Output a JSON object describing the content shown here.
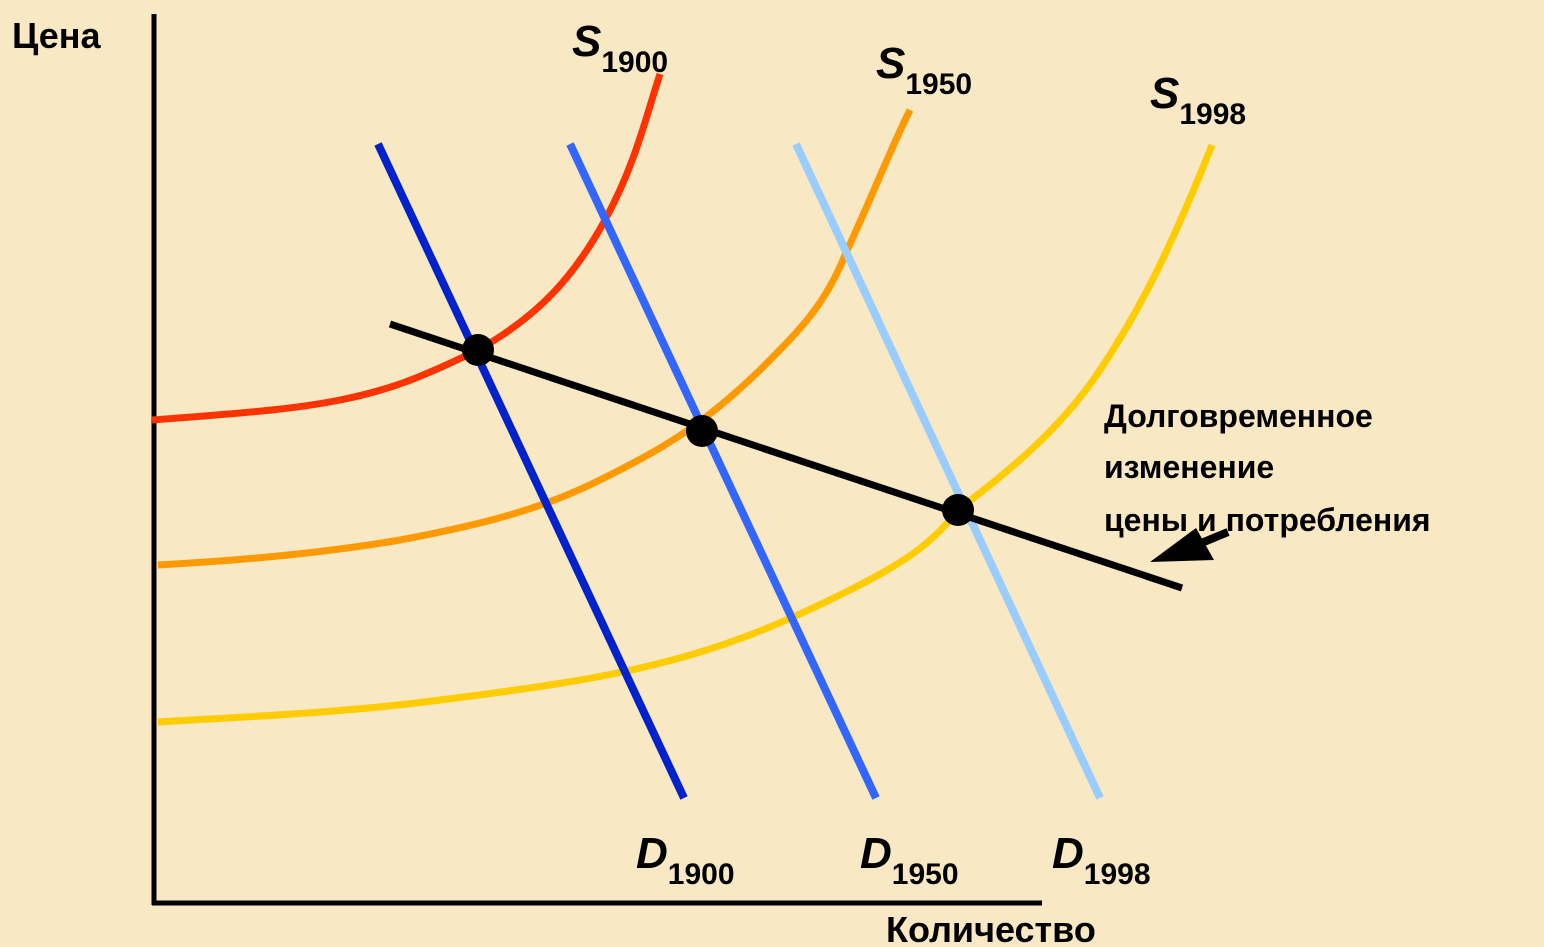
{
  "axes": {
    "y_label": "Цена",
    "x_label": "Количество"
  },
  "supply_curves": [
    {
      "letter": "S",
      "year": "1900",
      "color": "#ff3300"
    },
    {
      "letter": "S",
      "year": "1950",
      "color": "#ff9900"
    },
    {
      "letter": "S",
      "year": "1998",
      "color": "#ffcc00"
    }
  ],
  "demand_curves": [
    {
      "letter": "D",
      "year": "1900",
      "color": "#0022cc"
    },
    {
      "letter": "D",
      "year": "1950",
      "color": "#3366ff"
    },
    {
      "letter": "D",
      "year": "1998",
      "color": "#99ccff"
    }
  ],
  "trend_line": {
    "color": "#000000"
  },
  "annotation": {
    "lines": [
      "Долговременное",
      "изменение",
      "цены и потребления"
    ]
  },
  "colors": {
    "background": "#f9e8c4",
    "axis": "#000000"
  }
}
